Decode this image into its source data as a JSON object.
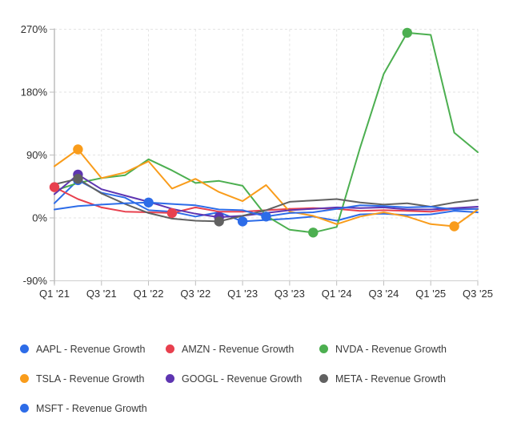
{
  "chart_data": {
    "type": "line",
    "title": "",
    "unit": "%",
    "grid": "dashed",
    "legend_position": "bottom",
    "marker_rule": "dot shown at each series maximum and minimum point",
    "x_categories": [
      "Q1 '21",
      "Q2 '21",
      "Q3 '21",
      "Q4 '21",
      "Q1 '22",
      "Q2 '22",
      "Q3 '22",
      "Q4 '22",
      "Q1 '23",
      "Q2 '23",
      "Q3 '23",
      "Q4 '23",
      "Q1 '24",
      "Q2 '24",
      "Q3 '24",
      "Q4 '24",
      "Q1 '25",
      "Q2 '25",
      "Q3 '25"
    ],
    "x_axis_ticks_shown": [
      "Q1 '21",
      "Q3 '21",
      "Q1 '22",
      "Q3 '22",
      "Q1 '23",
      "Q3 '23",
      "Q1 '24",
      "Q3 '24",
      "Q1 '25",
      "Q3 '25"
    ],
    "y_axis_ticks_shown": [
      "270%",
      "180%",
      "90%",
      "0%",
      "-90%"
    ],
    "y_gridline_values": [
      270,
      180,
      90,
      0,
      -90
    ],
    "ylim": [
      -90,
      270
    ],
    "series": [
      {
        "ticker": "AAPL",
        "label": "AAPL - Revenue Growth",
        "color": "#2d6ce8",
        "values": [
          21,
          54,
          36,
          29,
          11,
          9,
          2,
          8,
          -5,
          -3,
          -1,
          2,
          -4,
          5,
          6,
          4,
          5,
          10,
          8
        ]
      },
      {
        "ticker": "AMZN",
        "label": "AMZN - Revenue Growth",
        "color": "#e8404e",
        "values": [
          44,
          27,
          15,
          9,
          8,
          7,
          15,
          9,
          9,
          11,
          13,
          14,
          13,
          10,
          11,
          10,
          9,
          13,
          13
        ]
      },
      {
        "ticker": "NVDA",
        "label": "NVDA - Revenue Growth",
        "color": "#4caf50",
        "values": [
          39,
          50,
          57,
          61,
          84,
          68,
          50,
          53,
          46,
          3,
          -17,
          -21,
          -13,
          101,
          206,
          265,
          262,
          122,
          94
        ]
      },
      {
        "ticker": "TSLA",
        "label": "TSLA - Revenue Growth",
        "color": "#f99c1b",
        "values": [
          74,
          98,
          57,
          65,
          81,
          42,
          56,
          37,
          24,
          47,
          9,
          3,
          -9,
          2,
          8,
          2,
          -9,
          -12,
          12
        ]
      },
      {
        "ticker": "GOOGL",
        "label": "GOOGL - Revenue Growth",
        "color": "#5e35b1",
        "values": [
          34,
          62,
          41,
          32,
          23,
          13,
          6,
          1,
          3,
          7,
          11,
          13,
          15,
          14,
          15,
          12,
          12,
          14,
          16
        ]
      },
      {
        "ticker": "META",
        "label": "META - Revenue Growth",
        "color": "#616161",
        "values": [
          48,
          56,
          35,
          20,
          7,
          -1,
          -4,
          -5,
          3,
          11,
          23,
          25,
          27,
          22,
          19,
          21,
          16,
          22,
          26
        ]
      },
      {
        "ticker": "MSFT",
        "label": "MSFT - Revenue Growth",
        "color": "#2d6ce8",
        "values": [
          12,
          17,
          19,
          21,
          22,
          20,
          18,
          12,
          11,
          2,
          7,
          8,
          13,
          18,
          17,
          15,
          16,
          12,
          13
        ]
      }
    ],
    "colors": {
      "background": "#ffffff",
      "grid": "#e3e3e3",
      "axis": "#bdbdbd",
      "tick_label": "#2f2f2f",
      "legend_text": "#3a3a3a"
    }
  }
}
